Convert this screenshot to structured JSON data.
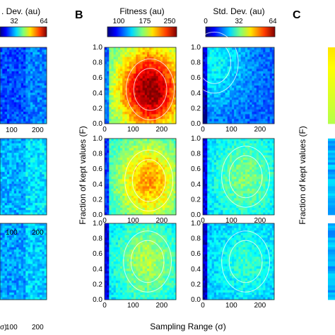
{
  "panels": {
    "B": "B",
    "C": "C"
  },
  "colorbars": [
    {
      "id": "cb-left-stddev",
      "title": ". Dev. (au)",
      "ticks": [
        "32",
        "64"
      ]
    },
    {
      "id": "cb-fitness",
      "title": "Fitness (au)",
      "ticks": [
        "100",
        "175",
        "250"
      ]
    },
    {
      "id": "cb-stddev",
      "title": "Std. Dev. (au)",
      "ticks": [
        "0",
        "32",
        "64"
      ]
    }
  ],
  "axes": {
    "ylabel_B": "Fraction of kept values (F)",
    "ylabel_C": "Fraction of kept values (F)",
    "xlabel": "Sampling Range (σ)",
    "xlabel_left_fragment": "σ)",
    "yticks": [
      "0.0",
      "0.2",
      "0.4",
      "0.6",
      "0.8",
      "1.0"
    ],
    "xticks": [
      "0",
      "100",
      "200"
    ],
    "left_xticks": [
      "100",
      "200"
    ]
  },
  "chart_data": {
    "type": "heatmap",
    "x_range": [
      0,
      250
    ],
    "y_range": [
      0.0,
      1.0
    ],
    "colormap": "jet",
    "fitness_scale": [
      75,
      250
    ],
    "stddev_scale": [
      0,
      64
    ],
    "maps": [
      {
        "column": "Fitness",
        "row": 1,
        "peak_x": 160,
        "peak_y": 0.45,
        "base": 0.42,
        "peak": 1.0
      },
      {
        "column": "Std. Dev.",
        "row": 1,
        "peak_x": 40,
        "peak_y": 0.8,
        "base": 0.22,
        "peak": 0.38
      },
      {
        "column": "Fitness",
        "row": 2,
        "peak_x": 155,
        "peak_y": 0.45,
        "base": 0.38,
        "peak": 0.72
      },
      {
        "column": "Std. Dev.",
        "row": 2,
        "peak_x": 150,
        "peak_y": 0.5,
        "base": 0.32,
        "peak": 0.5
      },
      {
        "column": "Fitness",
        "row": 3,
        "peak_x": 150,
        "peak_y": 0.5,
        "base": 0.32,
        "peak": 0.55
      },
      {
        "column": "Std. Dev.",
        "row": 3,
        "peak_x": 150,
        "peak_y": 0.5,
        "base": 0.3,
        "peak": 0.42
      }
    ]
  }
}
